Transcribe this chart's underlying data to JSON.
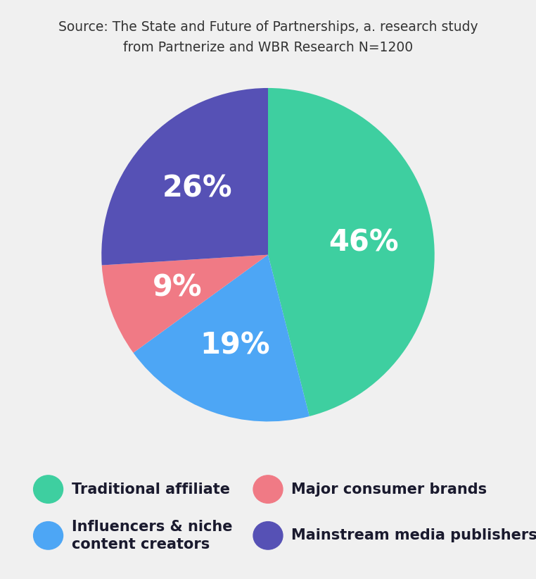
{
  "title": "Source: The State and Future of Partnerships, a. research study\nfrom Partnerize and WBR Research N=1200",
  "slices": [
    46,
    19,
    9,
    26
  ],
  "labels": [
    "46%",
    "19%",
    "9%",
    "26%"
  ],
  "colors": [
    "#3ecfa0",
    "#4da6f5",
    "#f07a85",
    "#5651b5"
  ],
  "legend_labels": [
    "Traditional affiliate",
    "Influencers & niche\ncontent creators",
    "Major consumer brands",
    "Mainstream media publishers"
  ],
  "legend_colors": [
    "#3ecfa0",
    "#4da6f5",
    "#f07a85",
    "#5651b5"
  ],
  "background_color": "#f0f0f0",
  "text_color": "#ffffff",
  "title_color": "#333333",
  "startangle": 90,
  "pct_fontsize": 30,
  "legend_fontsize": 15,
  "title_fontsize": 13.5
}
